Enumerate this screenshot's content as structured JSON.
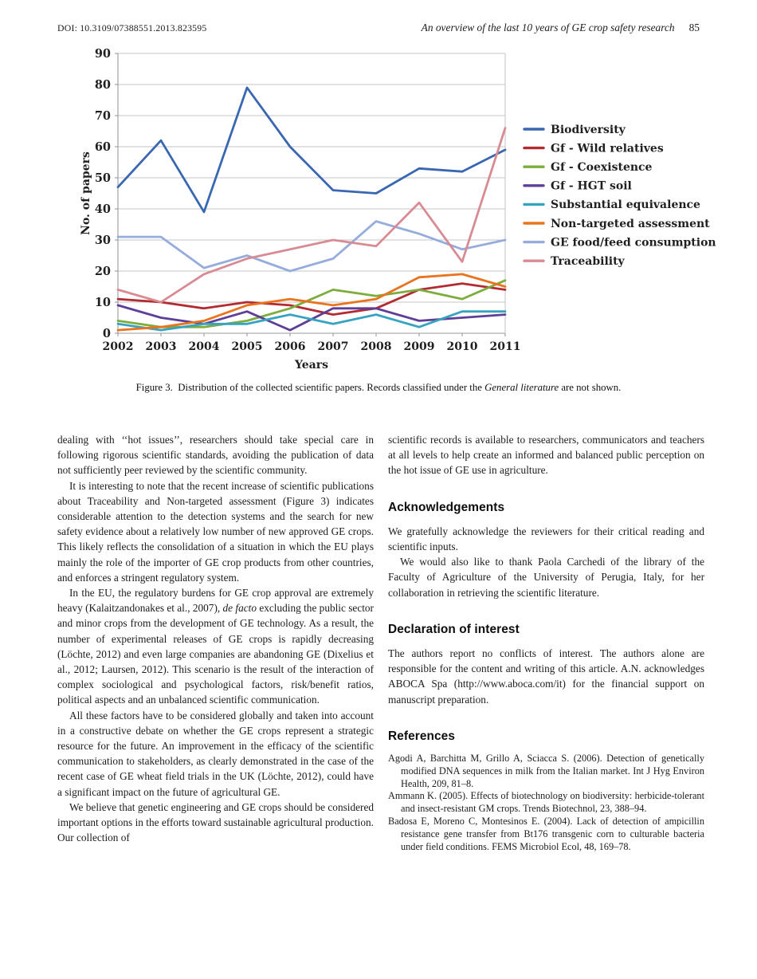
{
  "header": {
    "doi": "DOI: 10.3109/07388551.2013.823595",
    "running_title": "An overview of the last 10 years of GE crop safety research",
    "page_number": "85"
  },
  "chart_data": {
    "type": "line",
    "title": "",
    "xlabel": "Years",
    "ylabel": "No. of papers",
    "ylim": [
      0,
      90
    ],
    "yticks": [
      0,
      10,
      20,
      30,
      40,
      50,
      60,
      70,
      80,
      90
    ],
    "grid": true,
    "legend_position": "right",
    "categories": [
      "2002",
      "2003",
      "2004",
      "2005",
      "2006",
      "2007",
      "2008",
      "2009",
      "2010",
      "2011"
    ],
    "series": [
      {
        "name": "Biodiversity",
        "color": "#3A67B1",
        "values": [
          47,
          62,
          39,
          79,
          60,
          46,
          45,
          53,
          52,
          59
        ]
      },
      {
        "name": "Gf - Wild relatives",
        "color": "#B22B31",
        "values": [
          11,
          10,
          8,
          10,
          9,
          6,
          8,
          14,
          16,
          14
        ]
      },
      {
        "name": "Gf - Coexistence",
        "color": "#7CAD3D",
        "values": [
          4,
          2,
          2,
          4,
          8,
          14,
          12,
          14,
          11,
          17
        ]
      },
      {
        "name": "Gf - HGT soil",
        "color": "#5E3E97",
        "values": [
          9,
          5,
          3,
          7,
          1,
          8,
          8,
          4,
          5,
          6
        ]
      },
      {
        "name": "Substantial equivalence",
        "color": "#37A3C0",
        "values": [
          3,
          1,
          3,
          3,
          6,
          3,
          6,
          2,
          7,
          7
        ]
      },
      {
        "name": "Non-targeted assessment",
        "color": "#E9731E",
        "values": [
          1,
          2,
          4,
          9,
          11,
          9,
          11,
          18,
          19,
          15
        ]
      },
      {
        "name": "GE food/feed consumption",
        "color": "#95ACDC",
        "values": [
          31,
          31,
          21,
          25,
          20,
          24,
          36,
          32,
          27,
          30
        ]
      },
      {
        "name": "Traceability",
        "color": "#D98B93",
        "values": [
          14,
          10,
          19,
          24,
          27,
          30,
          28,
          42,
          23,
          66
        ]
      }
    ]
  },
  "figure": {
    "caption_prefix": "Figure 3. Distribution of the collected scientific papers. Records classified under the ",
    "caption_italic": "General literature",
    "caption_suffix": " are not shown."
  },
  "article": {
    "left_column": [
      {
        "indent": false,
        "segments": [
          {
            "t": "dealing with ‘‘hot issues’’, researchers should take special care in following rigorous scientific standards, avoiding the publication of data not sufficiently peer reviewed by the scientific community."
          }
        ]
      },
      {
        "indent": true,
        "segments": [
          {
            "t": "It is interesting to note that the recent increase of scientific publications about Traceability and Non-targeted assessment (Figure 3) indicates considerable attention to the detection systems and the search for new safety evidence about a relatively low number of new approved GE crops. This likely reflects the consolidation of a situation in which the EU plays mainly the role of the importer of GE crop products from other countries, and enforces a stringent regulatory system."
          }
        ]
      },
      {
        "indent": true,
        "segments": [
          {
            "t": "In the EU, the regulatory burdens for GE crop approval are extremely heavy (Kalaitzandonakes et al., 2007), "
          },
          {
            "t": "de facto",
            "i": true
          },
          {
            "t": " excluding the public sector and minor crops from the development of GE technology. As a result, the number of experimental releases of GE crops is rapidly decreasing (Löchte, 2012) and even large companies are abandoning GE (Dixelius et al., 2012; Laursen, 2012). This scenario is the result of the interaction of complex sociological and psychological factors, risk/benefit ratios, political aspects and an unbalanced scientific communication."
          }
        ]
      },
      {
        "indent": true,
        "segments": [
          {
            "t": "All these factors have to be considered globally and taken into account in a constructive debate on whether the GE crops represent a strategic resource for the future. An improvement in the efficacy of the scientific communication to stakeholders, as clearly demonstrated in the case of the recent case of GE wheat field trials in the UK (Löchte, 2012), could have a significant impact on the future of agricultural GE."
          }
        ]
      },
      {
        "indent": true,
        "segments": [
          {
            "t": "We believe that genetic engineering and GE crops should be considered important options in the efforts toward sustainable agricultural production. Our collection of"
          }
        ]
      }
    ],
    "right_column": {
      "lead_paragraphs": [
        {
          "indent": false,
          "segments": [
            {
              "t": "scientific records is available to researchers, communicators and teachers at all levels to help create an informed and balanced public perception on the hot issue of GE use in agriculture."
            }
          ]
        }
      ],
      "acknowledgements": {
        "title": "Acknowledgements",
        "paragraphs": [
          {
            "indent": false,
            "segments": [
              {
                "t": "We gratefully acknowledge the reviewers for their critical reading and scientific inputs."
              }
            ]
          },
          {
            "indent": true,
            "segments": [
              {
                "t": "We would also like to thank Paola Carchedi of the library of the Faculty of Agriculture of the University of Perugia, Italy, for her collaboration in retrieving the scientific literature."
              }
            ]
          }
        ]
      },
      "declaration": {
        "title": "Declaration of interest",
        "paragraphs": [
          {
            "indent": false,
            "segments": [
              {
                "t": "The authors report no conflicts of interest. The authors alone are responsible for the content and writing of this article. A.N. acknowledges ABOCA Spa (http://www.aboca.com/it) for the financial support on manuscript preparation."
              }
            ]
          }
        ]
      },
      "references": {
        "title": "References",
        "entries": [
          "Agodi A, Barchitta M, Grillo A, Sciacca S. (2006). Detection of genetically modified DNA sequences in milk from the Italian market. Int J Hyg Environ Health, 209, 81–8.",
          "Ammann K. (2005). Effects of biotechnology on biodiversity: herbicide-tolerant and insect-resistant GM crops. Trends Biotechnol, 23, 388–94.",
          "Badosa E, Moreno C, Montesinos E. (2004). Lack of detection of ampicillin resistance gene transfer from Bt176 transgenic corn to culturable bacteria under field conditions. FEMS Microbiol Ecol, 48, 169–78."
        ]
      }
    }
  }
}
